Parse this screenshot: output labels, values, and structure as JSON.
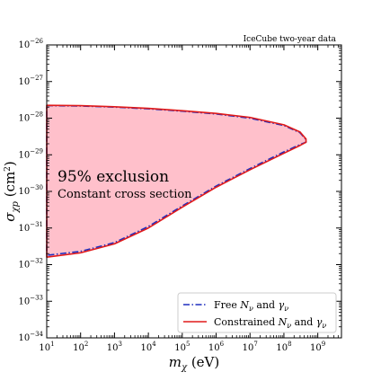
{
  "chart_data": {
    "type": "area",
    "corner_note": "IceCube two-year data",
    "xlabel": "m_χ (eV)",
    "ylabel": "σ_χp (cm²)",
    "xscale": "log",
    "yscale": "log",
    "xlim": [
      10.0,
      5000000000.0
    ],
    "ylim": [
      1e-34,
      1e-26
    ],
    "xticks": [
      {
        "value": 10.0,
        "base": "10",
        "exp": "1"
      },
      {
        "value": 100.0,
        "base": "10",
        "exp": "2"
      },
      {
        "value": 1000.0,
        "base": "10",
        "exp": "3"
      },
      {
        "value": 10000.0,
        "base": "10",
        "exp": "4"
      },
      {
        "value": 100000.0,
        "base": "10",
        "exp": "5"
      },
      {
        "value": 1000000.0,
        "base": "10",
        "exp": "6"
      },
      {
        "value": 10000000.0,
        "base": "10",
        "exp": "7"
      },
      {
        "value": 100000000.0,
        "base": "10",
        "exp": "8"
      },
      {
        "value": 1000000000.0,
        "base": "10",
        "exp": "9"
      }
    ],
    "yticks": [
      {
        "value": 1e-26,
        "base": "10",
        "exp": "−26"
      },
      {
        "value": 1e-27,
        "base": "10",
        "exp": "−27"
      },
      {
        "value": 1e-28,
        "base": "10",
        "exp": "−28"
      },
      {
        "value": 1e-29,
        "base": "10",
        "exp": "−29"
      },
      {
        "value": 1e-30,
        "base": "10",
        "exp": "−30"
      },
      {
        "value": 1e-31,
        "base": "10",
        "exp": "−31"
      },
      {
        "value": 1e-32,
        "base": "10",
        "exp": "−32"
      },
      {
        "value": 1e-33,
        "base": "10",
        "exp": "−33"
      },
      {
        "value": 1e-34,
        "base": "10",
        "exp": "−34"
      }
    ],
    "annotations": {
      "line1": "95% exclusion",
      "line2": "Constant cross section"
    },
    "fill_color": "#ffc0cb",
    "series": [
      {
        "name": "Free N_ν and γ_ν",
        "color": "#1f2fbf",
        "style": "dashdot",
        "upper": {
          "x": [
            10.0,
            100.0,
            1000.0,
            10000.0,
            100000.0,
            1000000.0,
            10000000.0,
            100000000.0,
            300000000.0,
            450000000.0
          ],
          "y": [
            2.2e-28,
            2.15e-28,
            2e-28,
            1.8e-28,
            1.55e-28,
            1.3e-28,
            1e-28,
            6.3e-29,
            4e-29,
            2.6e-29
          ]
        },
        "lower": {
          "x": [
            10.0,
            100.0,
            1000.0,
            10000.0,
            100000.0,
            1000000.0,
            10000000.0,
            100000000.0,
            300000000.0,
            450000000.0
          ],
          "y": [
            1.8e-32,
            2.3e-32,
            4e-32,
            1.1e-31,
            4e-31,
            1.4e-30,
            4.2e-30,
            1.2e-29,
            1.9e-29,
            2.2e-29
          ]
        }
      },
      {
        "name": "Constrained N_ν and γ_ν",
        "color": "#e01a1a",
        "style": "solid",
        "upper": {
          "x": [
            10.0,
            100.0,
            1000.0,
            10000.0,
            100000.0,
            1000000.0,
            10000000.0,
            100000000.0,
            300000000.0,
            450000000.0
          ],
          "y": [
            2.25e-28,
            2.2e-28,
            2.05e-28,
            1.85e-28,
            1.6e-28,
            1.35e-28,
            1.05e-28,
            6.6e-29,
            4.2e-29,
            2.7e-29
          ]
        },
        "lower": {
          "x": [
            10.0,
            100.0,
            1000.0,
            10000.0,
            100000.0,
            1000000.0,
            10000000.0,
            100000000.0,
            300000000.0,
            450000000.0
          ],
          "y": [
            1.6e-32,
            2.1e-32,
            3.7e-32,
            1e-31,
            3.7e-31,
            1.3e-30,
            3.9e-30,
            1.1e-29,
            1.8e-29,
            2.2e-29
          ]
        }
      }
    ],
    "legend_position": "lower-right",
    "legend": [
      {
        "text_main": "Free ",
        "var1": "N",
        "sub1": "ν",
        "mid": " and ",
        "var2": "γ",
        "sub2": "ν"
      },
      {
        "text_main": "Constrained ",
        "var1": "N",
        "sub1": "ν",
        "mid": " and ",
        "var2": "γ",
        "sub2": "ν"
      }
    ]
  }
}
